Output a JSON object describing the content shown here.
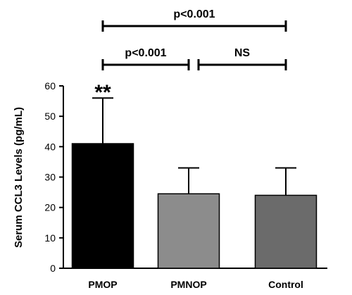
{
  "chart_data": {
    "type": "bar",
    "categories": [
      "PMOP",
      "PMNOP",
      "Control"
    ],
    "values": [
      41,
      24.5,
      24
    ],
    "error_upper": [
      56,
      33,
      33
    ],
    "colors": [
      "#000000",
      "#8c8c8c",
      "#6b6b6b"
    ],
    "ylabel": "Serum CCL3 Levels (pg/mL)",
    "ylim": [
      0,
      60
    ],
    "yticks": [
      0,
      10,
      20,
      30,
      40,
      50,
      60
    ],
    "grid": false,
    "bar_annotations": [
      {
        "category": "PMOP",
        "text": "**"
      }
    ],
    "comparisons": [
      {
        "from": "PMOP",
        "to": "Control",
        "label": "p<0.001"
      },
      {
        "from": "PMOP",
        "to": "PMNOP",
        "label": "p<0.001"
      },
      {
        "from": "PMNOP",
        "to": "Control",
        "label": "NS"
      }
    ]
  }
}
